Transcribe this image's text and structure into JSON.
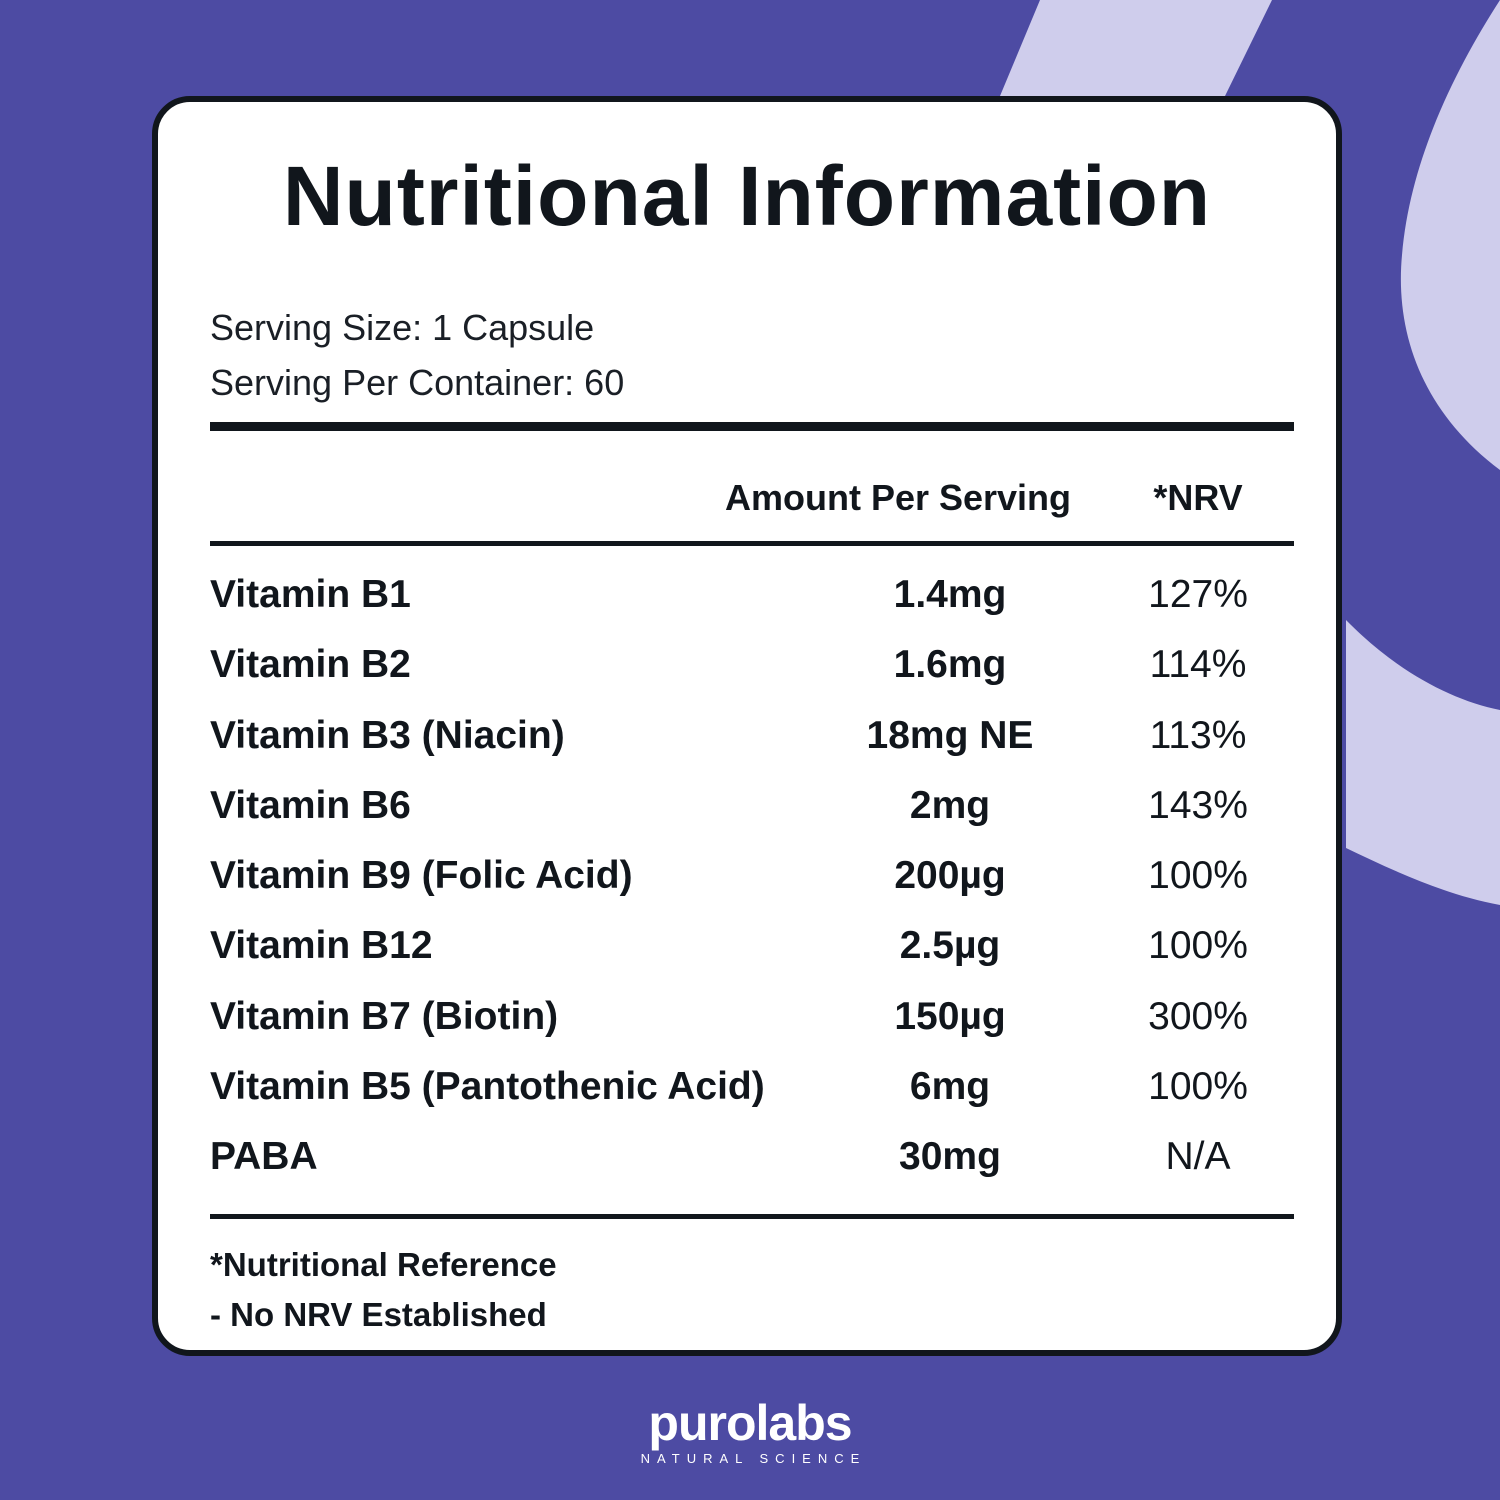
{
  "colors": {
    "background": "#4d4ba3",
    "swoosh": "#cfcdec",
    "card": "#ffffff",
    "ink": "#11161c"
  },
  "title": "Nutritional Information",
  "serving": {
    "size": "Serving Size: 1 Capsule",
    "per_container": "Serving Per Container: 60"
  },
  "table": {
    "headers": {
      "amount": "Amount Per Serving",
      "nrv": "*NRV"
    },
    "rows": [
      {
        "name": "Vitamin B1",
        "amount": "1.4mg",
        "nrv": "127%"
      },
      {
        "name": "Vitamin B2",
        "amount": "1.6mg",
        "nrv": "114%"
      },
      {
        "name": "Vitamin B3 (Niacin)",
        "amount": "18mg NE",
        "nrv": "113%"
      },
      {
        "name": "Vitamin B6",
        "amount": "2mg",
        "nrv": "143%"
      },
      {
        "name": "Vitamin B9 (Folic Acid)",
        "amount": "200µg",
        "nrv": "100%"
      },
      {
        "name": "Vitamin B12",
        "amount": "2.5µg",
        "nrv": "100%"
      },
      {
        "name": "Vitamin B7 (Biotin)",
        "amount": "150µg",
        "nrv": "300%"
      },
      {
        "name": "Vitamin B5 (Pantothenic Acid)",
        "amount": "6mg",
        "nrv": "100%"
      },
      {
        "name": "PABA",
        "amount": "30mg",
        "nrv": "N/A"
      }
    ]
  },
  "footnotes": {
    "reference": "*Nutritional Reference",
    "none": "- No NRV Established"
  },
  "logo": {
    "brand": "purolabs",
    "tagline": "NATURAL SCIENCE"
  }
}
